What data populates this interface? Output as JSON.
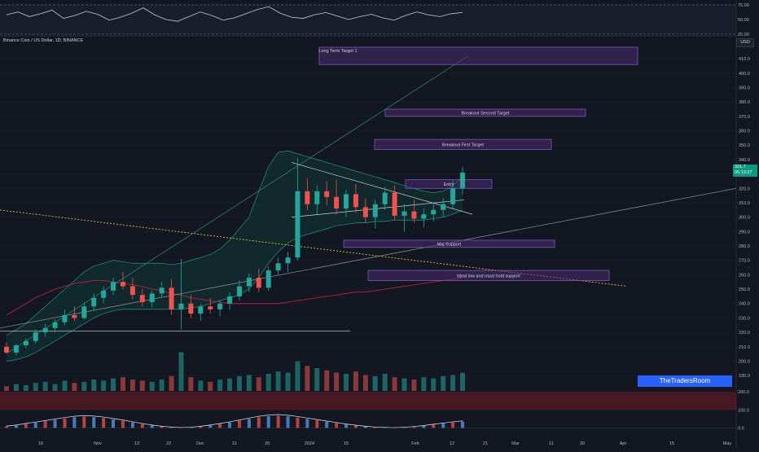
{
  "header": {
    "title": "Binance Coin / US Dollar, 1D, BINANCE",
    "currency_button": "USD",
    "last_price": "331.7",
    "countdown": "05:13:37"
  },
  "colors": {
    "background": "#131722",
    "up": "#26a69a",
    "down": "#ef5350",
    "box_border": "#7e57c2",
    "box_fill": "#4a2c6e"
  },
  "chart_data": [
    {
      "type": "line",
      "panel": "rsi",
      "y_ticks": [
        "75.00",
        "50.00",
        "25.00"
      ],
      "ylim": [
        25,
        75
      ],
      "x": [
        0,
        1,
        2,
        3,
        4,
        5,
        6,
        7,
        8,
        9,
        10,
        11,
        12,
        13,
        14,
        15,
        16,
        17,
        18,
        19,
        20,
        21,
        22,
        23,
        24,
        25,
        26,
        27,
        28,
        29,
        30,
        31,
        32,
        33,
        34,
        35,
        36,
        37,
        38,
        39,
        40
      ],
      "values": [
        58,
        63,
        55,
        60,
        66,
        52,
        57,
        64,
        59,
        49,
        54,
        61,
        70,
        58,
        50,
        47,
        55,
        63,
        57,
        49,
        53,
        60,
        67,
        72,
        61,
        54,
        52,
        58,
        62,
        56,
        50,
        55,
        59,
        53,
        49,
        57,
        63,
        58,
        55,
        60,
        62
      ]
    },
    {
      "type": "bar",
      "panel": "price",
      "x_tick_labels": [
        "16",
        "Nov",
        "13",
        "22",
        "Dec",
        "11",
        "20",
        "2024",
        "15",
        "Feb",
        "12",
        "21",
        "Mar",
        "11",
        "20",
        "Apr",
        "15",
        "May"
      ],
      "y_ticks": [
        "410.0",
        "400.0",
        "390.0",
        "380.0",
        "370.0",
        "360.0",
        "350.0",
        "340.0",
        "330.0",
        "320.0",
        "310.0",
        "300.0",
        "290.0",
        "280.0",
        "270.0",
        "260.0",
        "250.0",
        "240.0",
        "230.0",
        "220.0",
        "210.0",
        "200.0",
        "190.0"
      ],
      "ylim": [
        185,
        418
      ],
      "ohlc": [
        [
          210,
          213,
          205,
          206
        ],
        [
          206,
          212,
          204,
          211
        ],
        [
          211,
          216,
          209,
          214
        ],
        [
          214,
          222,
          212,
          220
        ],
        [
          220,
          226,
          217,
          223
        ],
        [
          223,
          229,
          220,
          227
        ],
        [
          227,
          236,
          225,
          232
        ],
        [
          232,
          238,
          228,
          230
        ],
        [
          230,
          241,
          229,
          238
        ],
        [
          238,
          247,
          235,
          244
        ],
        [
          244,
          252,
          240,
          249
        ],
        [
          249,
          258,
          246,
          255
        ],
        [
          255,
          262,
          250,
          252
        ],
        [
          252,
          258,
          243,
          246
        ],
        [
          246,
          250,
          238,
          241
        ],
        [
          241,
          249,
          237,
          247
        ],
        [
          247,
          255,
          244,
          251
        ],
        [
          251,
          257,
          232,
          236
        ],
        [
          236,
          271,
          222,
          240
        ],
        [
          240,
          246,
          230,
          233
        ],
        [
          233,
          240,
          228,
          238
        ],
        [
          238,
          244,
          233,
          236
        ],
        [
          236,
          242,
          231,
          240
        ],
        [
          240,
          248,
          236,
          245
        ],
        [
          245,
          256,
          242,
          252
        ],
        [
          252,
          261,
          248,
          258
        ],
        [
          258,
          264,
          248,
          251
        ],
        [
          251,
          266,
          249,
          263
        ],
        [
          263,
          272,
          260,
          268
        ],
        [
          268,
          276,
          262,
          272
        ],
        [
          272,
          341,
          270,
          318
        ],
        [
          318,
          327,
          305,
          309
        ],
        [
          309,
          322,
          302,
          318
        ],
        [
          318,
          325,
          308,
          314
        ],
        [
          314,
          326,
          302,
          306
        ],
        [
          306,
          319,
          300,
          316
        ],
        [
          316,
          323,
          303,
          307
        ],
        [
          307,
          313,
          296,
          300
        ],
        [
          300,
          312,
          292,
          309
        ],
        [
          309,
          321,
          305,
          317
        ],
        [
          317,
          322,
          298,
          301
        ],
        [
          301,
          309,
          290,
          304
        ],
        [
          304,
          312,
          296,
          299
        ],
        [
          299,
          306,
          293,
          302
        ],
        [
          302,
          309,
          297,
          305
        ],
        [
          305,
          313,
          300,
          309
        ],
        [
          309,
          326,
          306,
          320
        ],
        [
          320,
          335,
          316,
          331
        ]
      ],
      "indicator_bands": {
        "upper": [
          218,
          222,
          226,
          232,
          238,
          244,
          250,
          256,
          262,
          266,
          268,
          270,
          269,
          268,
          268,
          268,
          268,
          267,
          268,
          270,
          272,
          274,
          278,
          284,
          292,
          300,
          318,
          335,
          345,
          346,
          344,
          342,
          340,
          338,
          336,
          334,
          332,
          330,
          328,
          326,
          324,
          322,
          320,
          318,
          317,
          318,
          322,
          328
        ],
        "lower": [
          200,
          201,
          203,
          206,
          210,
          214,
          218,
          222,
          226,
          230,
          233,
          235,
          236,
          236,
          236,
          236,
          236,
          236,
          236,
          237,
          238,
          240,
          242,
          244,
          246,
          250,
          258,
          268,
          276,
          282,
          286,
          288,
          290,
          292,
          294,
          295,
          296,
          296,
          297,
          297,
          298,
          298,
          298,
          298,
          299,
          300,
          302,
          305
        ]
      },
      "moving_average_200": [
        232,
        236,
        240,
        244,
        247,
        250,
        252,
        254,
        255,
        256,
        256,
        255,
        254,
        253,
        252,
        250,
        249,
        247,
        246,
        244,
        243,
        242,
        241,
        240,
        240,
        240,
        240,
        240,
        240,
        241,
        242,
        243,
        244,
        245,
        246,
        247,
        248,
        248,
        249,
        250,
        251,
        252,
        253,
        254,
        255,
        256,
        257,
        258
      ],
      "zones": [
        {
          "label": "Long Term Target 1",
          "low": 406,
          "high": 418
        },
        {
          "label": "Breakout Second Target",
          "low": 370,
          "high": 375
        },
        {
          "label": "Breakout First Target",
          "low": 347,
          "high": 354
        },
        {
          "label": "Entry",
          "low": 320,
          "high": 326
        },
        {
          "label": "Maj Support",
          "low": 279,
          "high": 284
        },
        {
          "label": "Ideal low and must hold support",
          "low": 256,
          "high": 263
        }
      ],
      "volume": [
        4,
        6,
        5,
        7,
        8,
        6,
        9,
        7,
        8,
        10,
        9,
        11,
        12,
        10,
        9,
        8,
        10,
        13,
        34,
        12,
        9,
        8,
        10,
        11,
        13,
        14,
        12,
        15,
        17,
        16,
        26,
        22,
        20,
        18,
        16,
        15,
        17,
        14,
        13,
        15,
        12,
        11,
        10,
        12,
        11,
        13,
        14,
        16
      ]
    },
    {
      "type": "bar",
      "panel": "oscillator",
      "y_ticks": [
        "200.0",
        "100.0",
        "0.0"
      ],
      "ylim": [
        -20,
        200
      ],
      "values": [
        20,
        30,
        45,
        60,
        75,
        90,
        105,
        118,
        125,
        120,
        110,
        95,
        80,
        62,
        45,
        30,
        18,
        10,
        5,
        8,
        18,
        30,
        45,
        62,
        80,
        100,
        118,
        130,
        135,
        128,
        115,
        100,
        85,
        70,
        55,
        40,
        28,
        18,
        10,
        6,
        4,
        8,
        15,
        25,
        38,
        50,
        62,
        72
      ]
    }
  ],
  "branding": {
    "name": "TheTradersRoom"
  }
}
